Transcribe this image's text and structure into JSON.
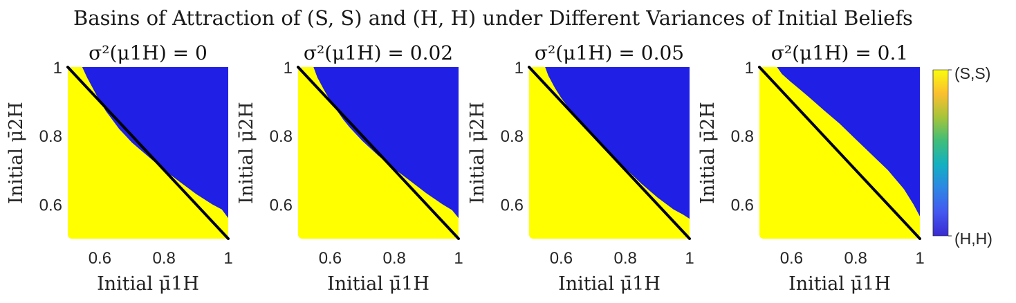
{
  "figure": {
    "title": "Basins of Attraction of (S, S) and (H, H) under Different Variances of Initial Beliefs"
  },
  "colors": {
    "ss": "#ffff00",
    "hh": "#1f1fe6",
    "line": "#000000"
  },
  "colorbar": {
    "top_label": "(S,S)",
    "bottom_label": "(H,H)",
    "stops": [
      "#f9fb0e",
      "#fbbf2f",
      "#a6c43a",
      "#3fbd7a",
      "#13b0c2",
      "#2e86e4",
      "#4458f0",
      "#3a2bd1"
    ]
  },
  "chart_data": [
    {
      "type": "heatmap",
      "title": "σ²(μ1H) = 0",
      "xlabel": "Initial μ̄1H",
      "ylabel": "Initial μ̄2H",
      "xlim": [
        0.5,
        1
      ],
      "ylim": [
        0.5,
        1
      ],
      "xticks": [
        0.6,
        0.8,
        1
      ],
      "yticks": [
        0.6,
        0.8,
        1
      ],
      "grid": false,
      "line": {
        "x": [
          0.5,
          1
        ],
        "y": [
          1,
          0.5
        ]
      },
      "boundary_x": [
        0.545,
        0.56,
        0.58,
        0.6,
        0.62,
        0.64,
        0.66,
        0.7,
        0.75,
        0.8,
        0.85,
        0.9,
        0.95,
        0.98,
        1.0
      ],
      "boundary_y": [
        1.0,
        0.97,
        0.935,
        0.9,
        0.87,
        0.845,
        0.82,
        0.78,
        0.74,
        0.7,
        0.665,
        0.63,
        0.6,
        0.585,
        0.56
      ]
    },
    {
      "type": "heatmap",
      "title": "σ²(μ1H) = 0.02",
      "xlabel": "Initial μ̄1H",
      "ylabel": "Initial μ̄2H",
      "xlim": [
        0.5,
        1
      ],
      "ylim": [
        0.5,
        1
      ],
      "xticks": [
        0.6,
        0.8,
        1
      ],
      "yticks": [
        0.6,
        0.8,
        1
      ],
      "grid": false,
      "line": {
        "x": [
          0.5,
          1
        ],
        "y": [
          1,
          0.5
        ]
      },
      "boundary_x": [
        0.548,
        0.56,
        0.58,
        0.6,
        0.62,
        0.64,
        0.66,
        0.7,
        0.75,
        0.8,
        0.85,
        0.9,
        0.95,
        0.98,
        1.0
      ],
      "boundary_y": [
        1.0,
        0.97,
        0.935,
        0.902,
        0.875,
        0.848,
        0.825,
        0.785,
        0.742,
        0.703,
        0.668,
        0.632,
        0.6,
        0.583,
        0.56
      ]
    },
    {
      "type": "heatmap",
      "title": "σ²(μ1H) = 0.05",
      "xlabel": "Initial μ̄1H",
      "ylabel": "Initial μ̄2H",
      "xlim": [
        0.5,
        1
      ],
      "ylim": [
        0.5,
        1
      ],
      "xticks": [
        0.6,
        0.8,
        1
      ],
      "yticks": [
        0.6,
        0.8,
        1
      ],
      "grid": false,
      "line": {
        "x": [
          0.5,
          1
        ],
        "y": [
          1,
          0.5
        ]
      },
      "boundary_x": [
        0.55,
        0.56,
        0.58,
        0.6,
        0.62,
        0.64,
        0.66,
        0.7,
        0.75,
        0.8,
        0.85,
        0.9,
        0.95,
        0.98,
        1.0
      ],
      "boundary_y": [
        1.0,
        0.975,
        0.94,
        0.91,
        0.885,
        0.86,
        0.84,
        0.8,
        0.752,
        0.705,
        0.66,
        0.62,
        0.585,
        0.57,
        0.558
      ]
    },
    {
      "type": "heatmap",
      "title": "σ²(μ1H) = 0.1",
      "xlabel": "Initial μ̄1H",
      "ylabel": "Initial μ̄2H",
      "xlim": [
        0.5,
        1
      ],
      "ylim": [
        0.5,
        1
      ],
      "xticks": [
        0.6,
        0.8,
        1
      ],
      "yticks": [
        0.6,
        0.8,
        1
      ],
      "grid": false,
      "line": {
        "x": [
          0.5,
          1
        ],
        "y": [
          1,
          0.5
        ]
      },
      "boundary_x": [
        0.555,
        0.57,
        0.6,
        0.63,
        0.66,
        0.7,
        0.75,
        0.8,
        0.85,
        0.9,
        0.95,
        0.98,
        1.0
      ],
      "boundary_y": [
        1.0,
        0.98,
        0.955,
        0.932,
        0.908,
        0.875,
        0.835,
        0.79,
        0.745,
        0.7,
        0.645,
        0.6,
        0.565
      ]
    }
  ]
}
